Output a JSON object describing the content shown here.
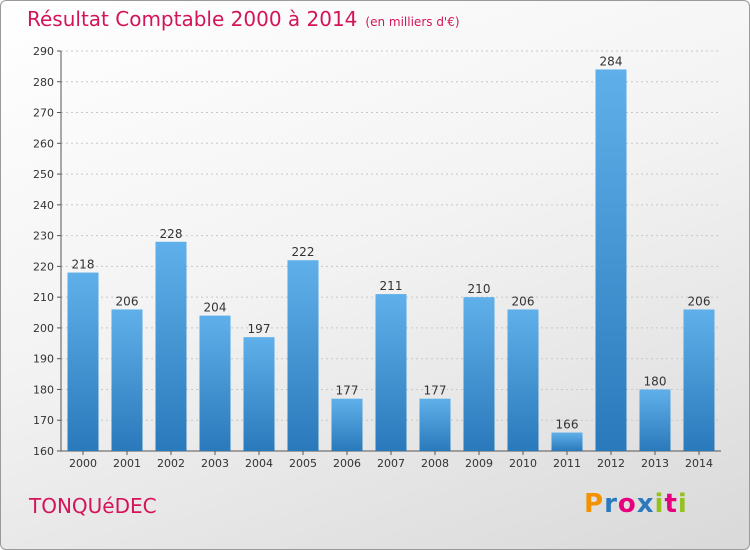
{
  "title": "Résultat Comptable 2000 à 2014",
  "unit_label": "(en milliers d'€)",
  "commune": "TONQUéDEC",
  "logo": {
    "text": "Proxiti",
    "colors": [
      "#f39200",
      "#2c79c0",
      "#e6007e",
      "#2c79c0",
      "#95c11f",
      "#e6007e",
      "#95c11f"
    ]
  },
  "colors": {
    "title": "#d4145a",
    "bar_light": "#5fb0ea",
    "bar_dark": "#2a79bb"
  },
  "chart_data": {
    "type": "bar",
    "title": "Résultat Comptable 2000 à 2014",
    "xlabel": "",
    "ylabel": "(en milliers d'€)",
    "categories": [
      "2000",
      "2001",
      "2002",
      "2003",
      "2004",
      "2005",
      "2006",
      "2007",
      "2008",
      "2009",
      "2010",
      "2011",
      "2012",
      "2013",
      "2014"
    ],
    "values": [
      218,
      206,
      228,
      204,
      197,
      222,
      177,
      211,
      177,
      210,
      206,
      166,
      284,
      180,
      206
    ],
    "ylim": [
      160,
      290
    ],
    "yticks": [
      160,
      170,
      180,
      190,
      200,
      210,
      220,
      230,
      240,
      250,
      260,
      270,
      280,
      290
    ],
    "grid": true
  }
}
